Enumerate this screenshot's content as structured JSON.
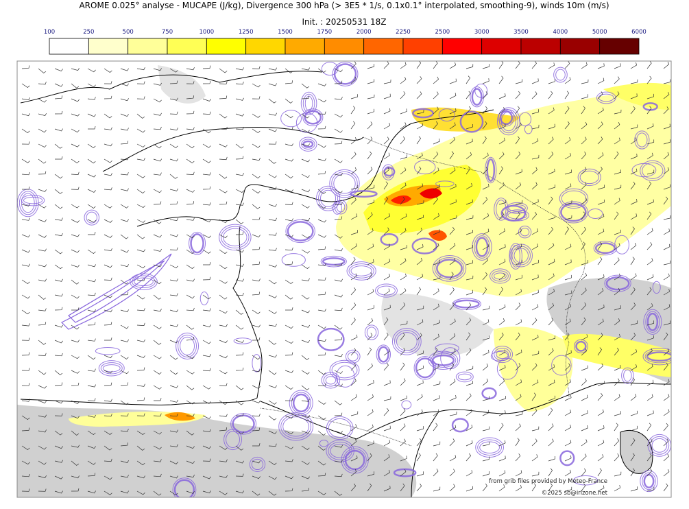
{
  "header": {
    "title": "AROME 0.025° analyse - MUCAPE (J/kg), Divergence 300 hPa (> 3E5 * 1/s, 0.1x0.1° interpolated, smoothing-9), winds 10m (m/s)",
    "init": "Init. : 20250531 18Z"
  },
  "colorbar": {
    "levels": [
      100,
      250,
      500,
      750,
      1000,
      1250,
      1500,
      1750,
      2000,
      2250,
      2500,
      3000,
      3500,
      4000,
      5000,
      6000
    ],
    "colors": [
      "#ffffff",
      "#ffffcc",
      "#ffff99",
      "#ffff55",
      "#ffff00",
      "#ffd700",
      "#ffaa00",
      "#ff8c00",
      "#ff6600",
      "#ff4000",
      "#ff0000",
      "#dd0000",
      "#bb0000",
      "#990000",
      "#660000"
    ]
  },
  "credits": [
    "from grib files provided by Meteo-France",
    "©2025 sb@irizone.net"
  ]
}
